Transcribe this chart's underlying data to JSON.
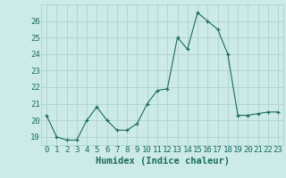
{
  "x": [
    0,
    1,
    2,
    3,
    4,
    5,
    6,
    7,
    8,
    9,
    10,
    11,
    12,
    13,
    14,
    15,
    16,
    17,
    18,
    19,
    20,
    21,
    22,
    23
  ],
  "y": [
    20.3,
    19.0,
    18.8,
    18.8,
    20.0,
    20.8,
    20.0,
    19.4,
    19.4,
    19.8,
    21.0,
    21.8,
    21.9,
    25.0,
    24.3,
    26.5,
    26.0,
    25.5,
    24.0,
    20.3,
    20.3,
    20.4,
    20.5,
    20.5
  ],
  "xlabel": "Humidex (Indice chaleur)",
  "ylim": [
    18.5,
    27.0
  ],
  "yticks": [
    19,
    20,
    21,
    22,
    23,
    24,
    25,
    26
  ],
  "xticks": [
    0,
    1,
    2,
    3,
    4,
    5,
    6,
    7,
    8,
    9,
    10,
    11,
    12,
    13,
    14,
    15,
    16,
    17,
    18,
    19,
    20,
    21,
    22,
    23
  ],
  "line_color": "#1a6b5e",
  "marker": "+",
  "marker_color": "#1a6b5e",
  "bg_color": "#cceae8",
  "grid_color": "#aacccc",
  "tick_color": "#1a6b5e",
  "label_color": "#1a6b5e",
  "tick_fontsize": 6.5,
  "xlabel_fontsize": 7.5
}
